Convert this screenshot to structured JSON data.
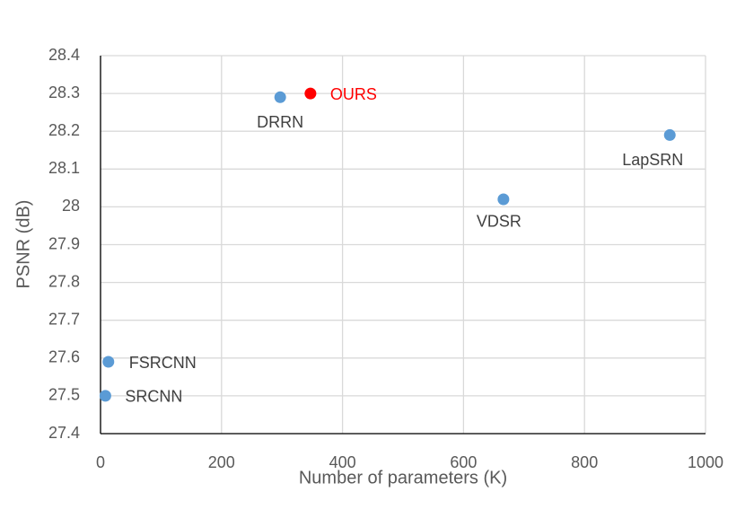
{
  "chart_data": {
    "type": "scatter",
    "x_label": "Number of parameters (K)",
    "y_label": "PSNR (dB)",
    "labels": [
      "SRCNN",
      "FSRCNN",
      "DRRN",
      "OURS",
      "VDSR",
      "LapSRN"
    ],
    "x": [
      8,
      13,
      297,
      347,
      666,
      941
    ],
    "values": [
      27.5,
      27.59,
      28.29,
      28.3,
      28.02,
      28.19
    ],
    "colors": [
      "#5b9bd5",
      "#5b9bd5",
      "#5b9bd5",
      "#ff0000",
      "#5b9bd5",
      "#5b9bd5"
    ],
    "label_colors": [
      "#404040",
      "#404040",
      "#404040",
      "#ff0000",
      "#404040",
      "#404040"
    ],
    "xlim": [
      0,
      1000
    ],
    "xticks": [
      0,
      200,
      400,
      600,
      800,
      1000
    ],
    "ylim": [
      27.4,
      28.4
    ],
    "yticks": [
      27.4,
      27.5,
      27.6,
      27.7,
      27.8,
      27.9,
      28,
      28.1,
      28.2,
      28.3,
      28.4
    ],
    "grid": true
  }
}
